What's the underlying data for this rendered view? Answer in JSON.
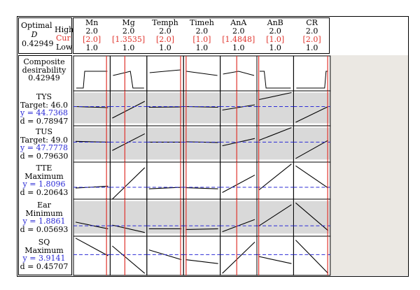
{
  "optimal": {
    "title": "Optimal",
    "d_label": "D",
    "d_value": "0.42949",
    "high_label": "High",
    "cur_label": "Cur",
    "low_label": "Low"
  },
  "factors": [
    {
      "name": "Mn",
      "high": "2.0",
      "cur": "[2.0]",
      "low": "1.0"
    },
    {
      "name": "Mg",
      "high": "2.0",
      "cur": "[1.3535]",
      "low": "1.0"
    },
    {
      "name": "Temph",
      "high": "2.0",
      "cur": "[2.0]",
      "low": "1.0"
    },
    {
      "name": "Timeh",
      "high": "2.0",
      "cur": "[1.0]",
      "low": "1.0"
    },
    {
      "name": "AnA",
      "high": "2.0",
      "cur": "[1.4848]",
      "low": "1.0"
    },
    {
      "name": "AnB",
      "high": "2.0",
      "cur": "[1.0]",
      "low": "1.0"
    },
    {
      "name": "CR",
      "high": "2.0",
      "cur": "[2.0]",
      "low": "1.0"
    }
  ],
  "responses": [
    {
      "l1": "Composite",
      "l2": "desirability",
      "l3": "0.42949",
      "l4": ""
    },
    {
      "l1": "TYS",
      "l2": "Target: 46.0",
      "l3": "y = 44.7368",
      "l4": "d = 0.78947"
    },
    {
      "l1": "TUS",
      "l2": "Target: 49.0",
      "l3": "y = 47.7778",
      "l4": "d = 0.79630"
    },
    {
      "l1": "TTE",
      "l2": "Maximum",
      "l3": "y = 1.8096",
      "l4": "d = 0.20643"
    },
    {
      "l1": "Ear",
      "l2": "Minimum",
      "l3": "y = 1.8861",
      "l4": "d = 0.05693"
    },
    {
      "l1": "SQ",
      "l2": "Maximum",
      "l3": "y = 3.9141",
      "l4": "d = 0.45707"
    }
  ],
  "colors": {
    "current_line": "#e0342d",
    "response_line": "#2b2bd6",
    "shaded": "#d9d9d9",
    "side_panel": "#ebe8e3"
  }
}
